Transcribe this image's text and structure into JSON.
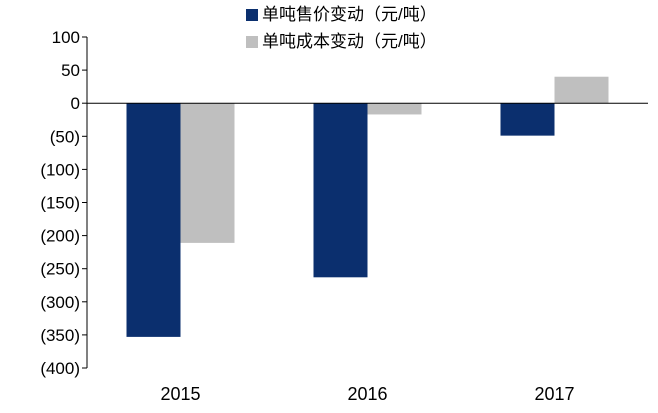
{
  "chart_data": {
    "type": "bar",
    "title": "",
    "xlabel": "",
    "ylabel": "",
    "categories": [
      "2015",
      "2016",
      "2017"
    ],
    "series": [
      {
        "name": "单吨售价变动（元/吨）",
        "color": "#0b2f6e",
        "values": [
          -353,
          -263,
          -49
        ]
      },
      {
        "name": "单吨成本变动（元/吨）",
        "color": "#bfbfbf",
        "values": [
          -211,
          -17,
          40
        ]
      }
    ],
    "ylim": [
      -400,
      100
    ],
    "yticks": [
      100,
      50,
      0,
      -50,
      -100,
      -150,
      -200,
      -250,
      -300,
      -350,
      -400
    ],
    "ytick_labels": [
      "100",
      "50",
      "0",
      "(50)",
      "(100)",
      "(150)",
      "(200)",
      "(250)",
      "(300)",
      "(350)",
      "(400)"
    ],
    "grid": false,
    "legend_position": "top"
  }
}
